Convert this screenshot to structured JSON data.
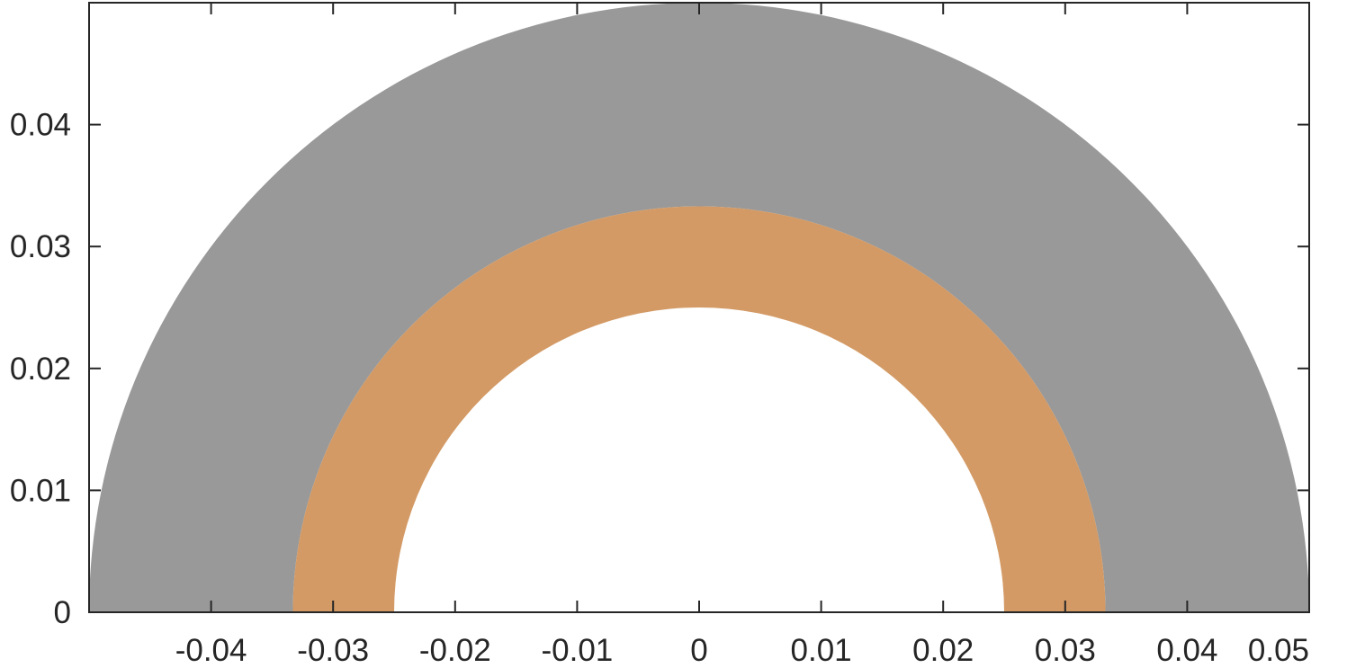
{
  "chart_data": {
    "type": "area",
    "title": "",
    "xlabel": "",
    "ylabel": "",
    "xlim": [
      -0.05,
      0.05
    ],
    "ylim": [
      0,
      0.05
    ],
    "grid": false,
    "legend": "none",
    "aspect": "equal",
    "x_ticks": [
      -0.04,
      -0.03,
      -0.02,
      -0.01,
      0,
      0.01,
      0.02,
      0.03,
      0.04,
      0.05
    ],
    "x_tick_labels": [
      "-0.04",
      "-0.03",
      "-0.02",
      "-0.01",
      "0",
      "0.01",
      "0.02",
      "0.03",
      "0.04",
      "0.05"
    ],
    "y_ticks": [
      0,
      0.01,
      0.02,
      0.03,
      0.04
    ],
    "y_tick_labels": [
      "0",
      "0.01",
      "0.02",
      "0.03",
      "0.04"
    ],
    "regions": [
      {
        "shape": "half-annulus",
        "center": [
          0,
          0
        ],
        "inner_radius": 0.0333,
        "outer_radius": 0.05,
        "color": "#999999"
      },
      {
        "shape": "half-annulus",
        "center": [
          0,
          0
        ],
        "inner_radius": 0.025,
        "outer_radius": 0.0333,
        "color": "#D39A65"
      }
    ]
  },
  "colors": {
    "axis": "#262626",
    "background": "#ffffff"
  }
}
